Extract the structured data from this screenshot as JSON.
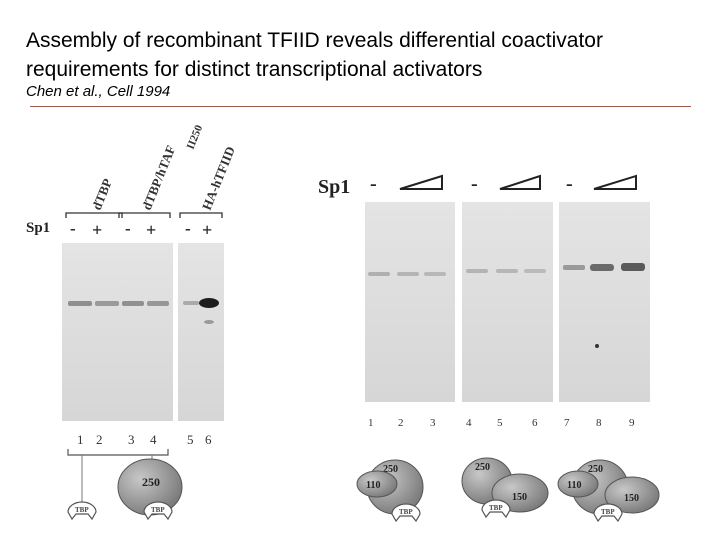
{
  "slide": {
    "title": "Assembly of recombinant TFIID reveals differential coactivator requirements for distinct transcriptional activators",
    "citation": "Chen et al., Cell 1994"
  },
  "left_panel": {
    "row_label": "Sp1",
    "column_headers": [
      "dTBP",
      "dTBP/hTAF",
      "II250",
      "HA-hTFIID"
    ],
    "signs": [
      "-",
      "+",
      "-",
      "+",
      "-",
      "+"
    ],
    "lanes": [
      "1",
      "2",
      "3",
      "4",
      "5",
      "6"
    ],
    "complex": {
      "tbp": "TBP",
      "taf": "250"
    }
  },
  "right_panel": {
    "row_label": "Sp1",
    "minus_signs": [
      "-",
      "-",
      "-"
    ],
    "lanes": [
      "1",
      "2",
      "3",
      "4",
      "5",
      "6",
      "7",
      "8",
      "9"
    ],
    "complex_a": {
      "tbp": "TBP",
      "t250": "250",
      "t110": "110"
    },
    "complex_b": {
      "tbp": "TBP",
      "t250": "250",
      "t150": "150"
    },
    "complex_c": {
      "tbp": "TBP",
      "t250": "250",
      "t110": "110",
      "t150": "150"
    }
  }
}
